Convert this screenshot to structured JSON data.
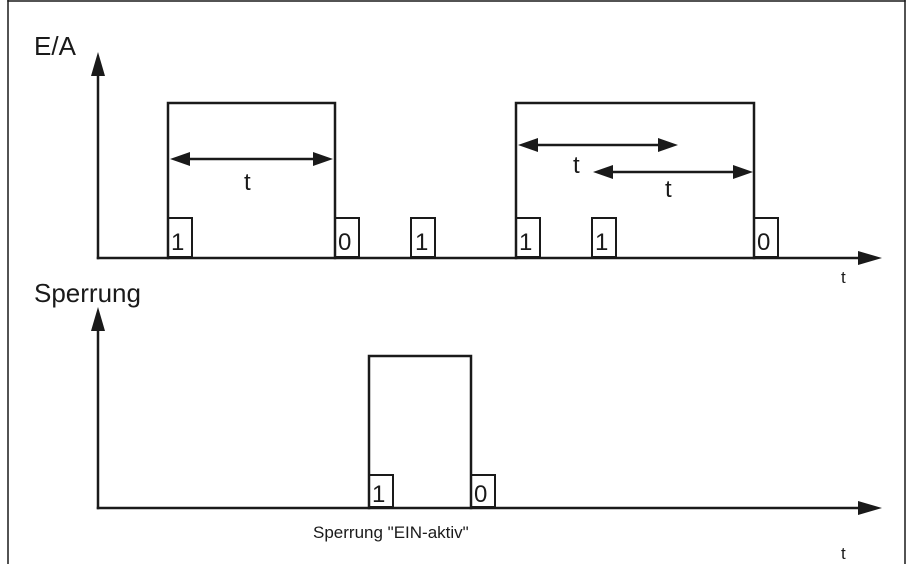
{
  "top_chart": {
    "y_label": "E/A",
    "x_label": "t",
    "duration_label": "t",
    "inputs": [
      "1",
      "0",
      "1",
      "1",
      "1",
      "0"
    ]
  },
  "bottom_chart": {
    "y_label": "Sperrung",
    "x_label": "t",
    "inputs": [
      "1",
      "0"
    ],
    "caption": "Sperrung \"EIN-aktiv\""
  }
}
